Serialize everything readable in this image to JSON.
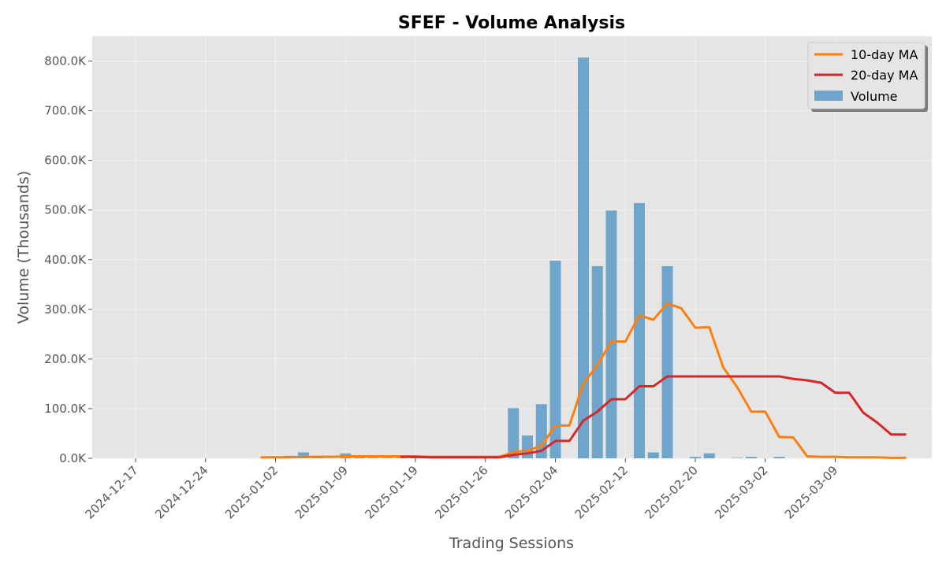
{
  "chart_data": {
    "type": "bar",
    "title": "SFEF - Volume Analysis",
    "xlabel": "Trading Sessions",
    "ylabel": "Volume (Thousands)",
    "ylim": [
      0,
      850000
    ],
    "grid": true,
    "legend_position": "top-right",
    "y_ticks": [
      {
        "value": 0,
        "label": "0.0K"
      },
      {
        "value": 100000,
        "label": "100.0K"
      },
      {
        "value": 200000,
        "label": "200.0K"
      },
      {
        "value": 300000,
        "label": "300.0K"
      },
      {
        "value": 400000,
        "label": "400.0K"
      },
      {
        "value": 500000,
        "label": "500.0K"
      },
      {
        "value": 600000,
        "label": "600.0K"
      },
      {
        "value": 700000,
        "label": "700.0K"
      },
      {
        "value": 800000,
        "label": "800.0K"
      }
    ],
    "x_ticks": [
      {
        "index": 0,
        "label": "2024-12-17"
      },
      {
        "index": 5,
        "label": "2024-12-24"
      },
      {
        "index": 10,
        "label": "2025-01-02"
      },
      {
        "index": 15,
        "label": "2025-01-09"
      },
      {
        "index": 20,
        "label": "2025-01-19"
      },
      {
        "index": 25,
        "label": "2025-01-26"
      },
      {
        "index": 30,
        "label": "2025-02-04"
      },
      {
        "index": 35,
        "label": "2025-02-12"
      },
      {
        "index": 40,
        "label": "2025-02-20"
      },
      {
        "index": 45,
        "label": "2025-03-02"
      },
      {
        "index": 50,
        "label": "2025-03-09"
      }
    ],
    "n_sessions": 56,
    "series": [
      {
        "name": "Volume",
        "kind": "bar",
        "color": "#5b9ac6",
        "values": [
          0,
          0,
          0,
          0,
          0,
          0,
          0,
          0,
          0,
          0,
          0,
          5000,
          12000,
          1000,
          0,
          10000,
          2000,
          1000,
          1000,
          1000,
          1000,
          1000,
          1000,
          1000,
          0,
          0,
          0,
          101000,
          46000,
          109000,
          398000,
          0,
          807000,
          387000,
          499000,
          0,
          514000,
          12000,
          387000,
          0,
          3000,
          10000,
          0,
          1000,
          3000,
          0,
          3000,
          0,
          0,
          0,
          0,
          0,
          0,
          0,
          0,
          0
        ]
      },
      {
        "name": "10-day MA",
        "kind": "line",
        "color": "#ff7f0e",
        "values": [
          null,
          null,
          null,
          null,
          null,
          null,
          null,
          null,
          null,
          2000,
          2000,
          2000,
          3000,
          3000,
          3000,
          4000,
          4000,
          4000,
          4000,
          4000,
          4000,
          3000,
          3000,
          3000,
          3000,
          3000,
          3000,
          12000,
          16000,
          25000,
          66000,
          66000,
          150000,
          188000,
          235000,
          235000,
          288000,
          279000,
          312000,
          302000,
          263000,
          264000,
          183000,
          143000,
          94000,
          94000,
          43000,
          42000,
          4000,
          3000,
          3000,
          2000,
          2000,
          2000,
          1000,
          1000
        ]
      },
      {
        "name": "20-day MA",
        "kind": "line",
        "color": "#d62728",
        "values": [
          null,
          null,
          null,
          null,
          null,
          null,
          null,
          null,
          null,
          null,
          null,
          null,
          null,
          null,
          null,
          null,
          null,
          null,
          null,
          3000,
          3000,
          2000,
          2000,
          2000,
          2000,
          2000,
          2000,
          7000,
          10000,
          15000,
          35000,
          35000,
          76000,
          94000,
          119000,
          119000,
          145000,
          145000,
          165000,
          165000,
          165000,
          165000,
          165000,
          165000,
          165000,
          165000,
          165000,
          160000,
          157000,
          152000,
          132000,
          132000,
          92000,
          72000,
          48000,
          48000
        ]
      }
    ]
  },
  "legend": {
    "items": [
      {
        "label": "10-day MA",
        "color": "#ff7f0e",
        "kind": "line"
      },
      {
        "label": "20-day MA",
        "color": "#d62728",
        "kind": "line"
      },
      {
        "label": "Volume",
        "color": "#5b9ac6",
        "kind": "bar"
      }
    ]
  }
}
